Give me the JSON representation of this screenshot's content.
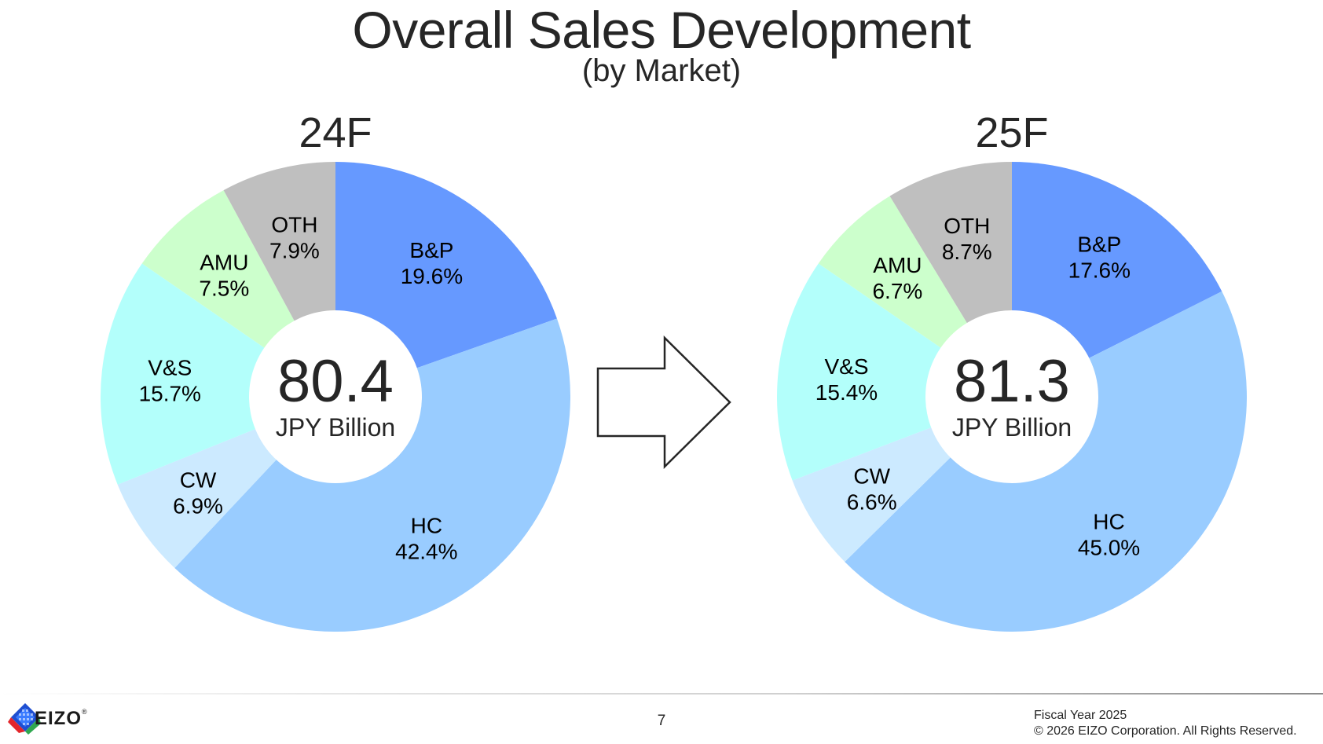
{
  "title": "Overall Sales Development",
  "subtitle": "(by Market)",
  "chart_data": [
    {
      "type": "pie",
      "title": "24F",
      "center_value": "80.4",
      "center_unit": "JPY Billion",
      "categories": [
        "B&P",
        "HC",
        "CW",
        "V&S",
        "AMU",
        "OTH"
      ],
      "values": [
        19.6,
        42.4,
        6.9,
        15.7,
        7.5,
        7.9
      ],
      "value_labels": [
        "19.6%",
        "42.4%",
        "6.9%",
        "15.7%",
        "7.5%",
        "7.9%"
      ],
      "colors": [
        "#6699ff",
        "#99ccff",
        "#cceaff",
        "#b3fffb",
        "#ccffcc",
        "#bfbfbf"
      ]
    },
    {
      "type": "pie",
      "title": "25F",
      "center_value": "81.3",
      "center_unit": "JPY Billion",
      "categories": [
        "B&P",
        "HC",
        "CW",
        "V&S",
        "AMU",
        "OTH"
      ],
      "values": [
        17.6,
        45.0,
        6.6,
        15.4,
        6.7,
        8.7
      ],
      "value_labels": [
        "17.6%",
        "45.0%",
        "6.6%",
        "15.4%",
        "6.7%",
        "8.7%"
      ],
      "colors": [
        "#6699ff",
        "#99ccff",
        "#cceaff",
        "#b3fffb",
        "#ccffcc",
        "#bfbfbf"
      ]
    }
  ],
  "arrow": {
    "icon": "right-arrow-icon",
    "fill": "#ffffff",
    "stroke": "#262626"
  },
  "footer": {
    "logo_text": "EIZO",
    "logo_mark": "®",
    "page_number": "7",
    "fiscal_year": "Fiscal Year 2025",
    "copyright": "© 2026 EIZO Corporation. All Rights Reserved."
  }
}
